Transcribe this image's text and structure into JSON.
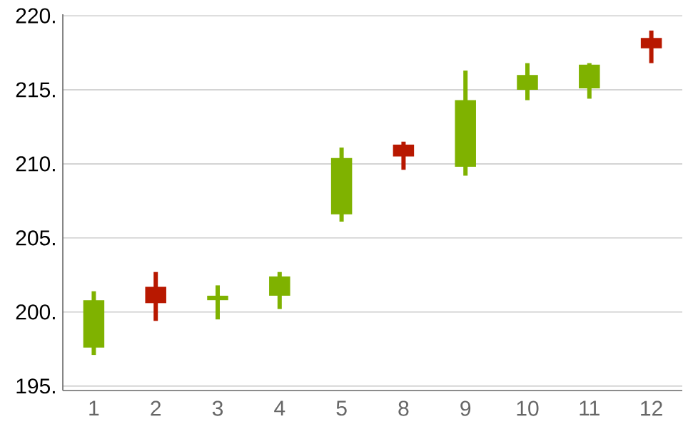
{
  "chart_data": {
    "type": "candlestick",
    "categories": [
      "1",
      "2",
      "3",
      "4",
      "5",
      "8",
      "9",
      "10",
      "11",
      "12"
    ],
    "ohlc": [
      [
        197.6,
        201.4,
        197.1,
        200.8
      ],
      [
        201.7,
        202.7,
        199.4,
        200.6
      ],
      [
        200.8,
        201.8,
        199.5,
        201.1
      ],
      [
        201.1,
        202.7,
        200.2,
        202.4
      ],
      [
        206.6,
        211.1,
        206.1,
        210.4
      ],
      [
        211.3,
        211.5,
        209.6,
        210.5
      ],
      [
        209.8,
        216.3,
        209.2,
        214.3
      ],
      [
        215.0,
        216.8,
        214.3,
        216.0
      ],
      [
        215.1,
        216.8,
        214.4,
        216.7
      ],
      [
        218.5,
        219.0,
        216.8,
        217.8
      ]
    ],
    "colors": [
      "#7fb200",
      "#b81800",
      "#7fb200",
      "#7fb200",
      "#7fb200",
      "#b81800",
      "#7fb200",
      "#7fb200",
      "#7fb200",
      "#b81800"
    ],
    "ylim": [
      194.7,
      220.1
    ],
    "yticks": [
      {
        "value": 195,
        "label": "195."
      },
      {
        "value": 200,
        "label": "200."
      },
      {
        "value": 205,
        "label": "205."
      },
      {
        "value": 210,
        "label": "210."
      },
      {
        "value": 215,
        "label": "215."
      },
      {
        "value": 220,
        "label": "220."
      }
    ],
    "grid": "y"
  }
}
